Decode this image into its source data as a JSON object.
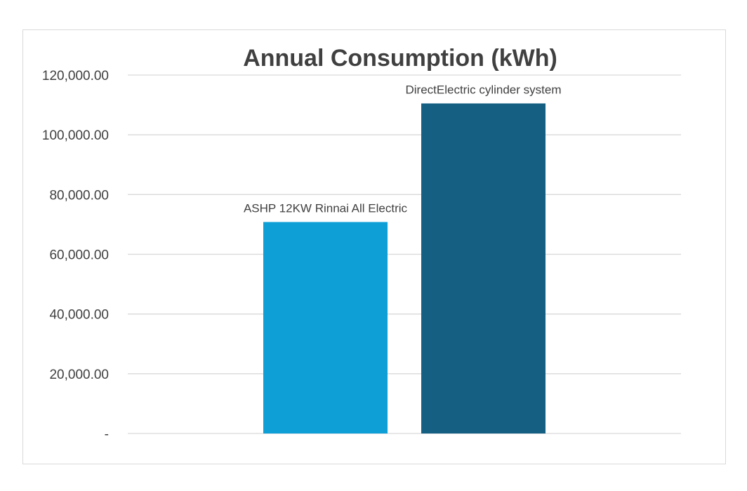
{
  "chart_data": {
    "type": "bar",
    "title": "Annual Consumption (kWh)",
    "xlabel": "",
    "ylabel": "",
    "categories": [
      "ASHP 12KW Rinnai All Electric",
      "DirectElectric cylinder system"
    ],
    "values": [
      70800,
      110500
    ],
    "ylim": [
      0,
      120000
    ],
    "y_ticks": [
      {
        "value": 0,
        "label": "-"
      },
      {
        "value": 20000,
        "label": "20,000.00"
      },
      {
        "value": 40000,
        "label": "40,000.00"
      },
      {
        "value": 60000,
        "label": "60,000.00"
      },
      {
        "value": 80000,
        "label": "80,000.00"
      },
      {
        "value": 100000,
        "label": "100,000.00"
      },
      {
        "value": 120000,
        "label": "120,000.00"
      }
    ],
    "bar_colors": [
      "#0e9fd7",
      "#155f82"
    ],
    "grid": true,
    "legend": "none",
    "data_labels": [
      "ASHP 12KW Rinnai All Electric",
      "DirectElectric cylinder system"
    ]
  }
}
